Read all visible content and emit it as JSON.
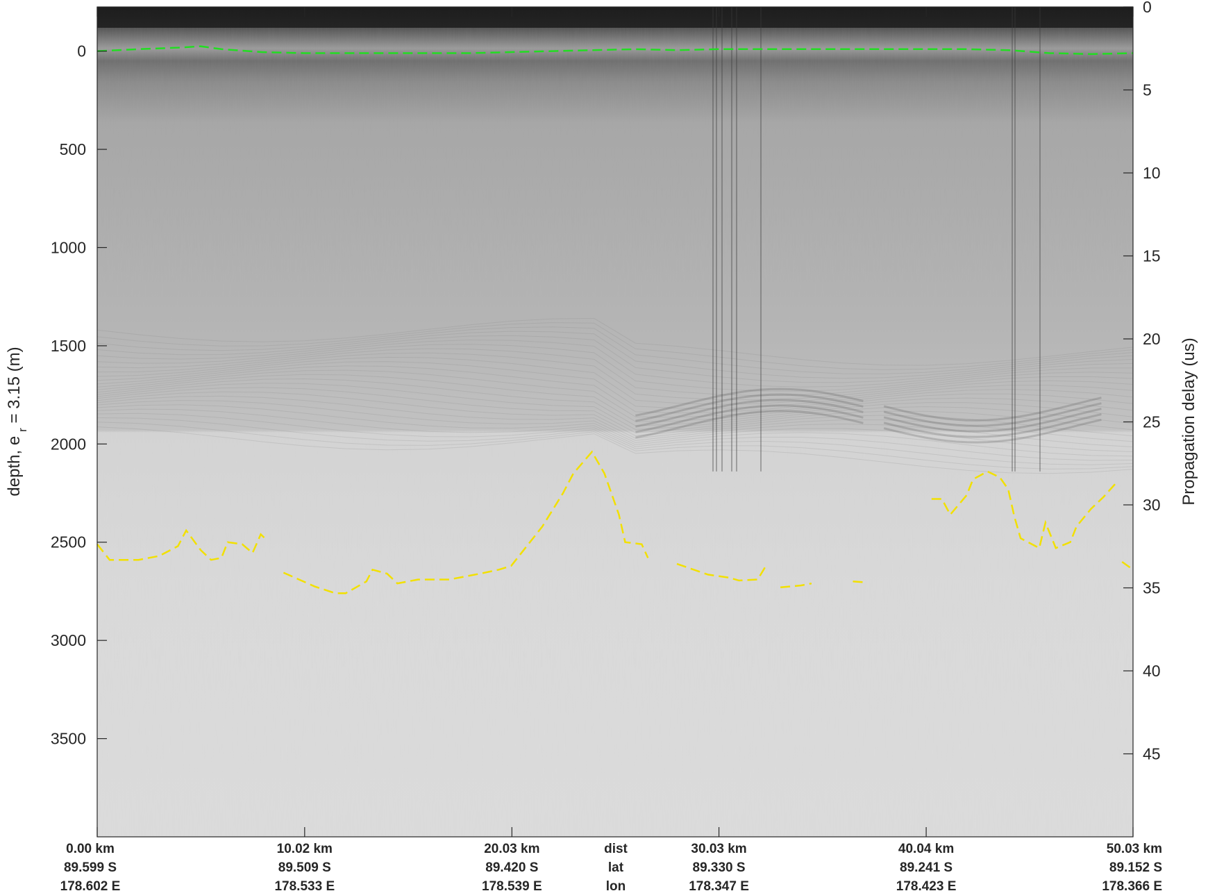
{
  "chart_data": {
    "type": "radargram",
    "ylabel": "depth, e",
    "ylabel_sub": "r",
    "ylabel_tail": " = 3.15 (m)",
    "y2label": "Propagation delay (us)",
    "y_ticks": [
      0,
      500,
      1000,
      1500,
      2000,
      2500,
      3000,
      3500
    ],
    "y_ticks_label": [
      "0",
      "500",
      "1000",
      "1500",
      "2000",
      "2500",
      "3000",
      "3500"
    ],
    "ylim": [
      -225,
      4000
    ],
    "y2_ticks": [
      0,
      5,
      10,
      15,
      20,
      25,
      30,
      35,
      40,
      45
    ],
    "y2_ticks_label": [
      "0",
      "5",
      "10",
      "15",
      "20",
      "25",
      "30",
      "35",
      "40",
      "45"
    ],
    "y2lim": [
      0,
      50
    ],
    "x_km_range": [
      0,
      50.03
    ],
    "x_ticks": [
      {
        "km": 0.0,
        "dist": "0.00 km",
        "lat": "89.599 S",
        "lon": "178.602 E"
      },
      {
        "km": 10.02,
        "dist": "10.02 km",
        "lat": "89.509 S",
        "lon": "178.533 E"
      },
      {
        "km": 20.03,
        "dist": "20.03 km",
        "lat": "89.420 S",
        "lon": "178.539 E"
      },
      {
        "km": 30.03,
        "dist": "30.03 km",
        "lat": "89.330 S",
        "lon": "178.347 E"
      },
      {
        "km": 40.04,
        "dist": "40.04 km",
        "lat": "89.241 S",
        "lon": "178.423 E"
      },
      {
        "km": 50.03,
        "dist": "50.03 km",
        "lat": "89.152 S",
        "lon": "178.366 E"
      }
    ],
    "row_labels": {
      "dist": "dist",
      "lat": "lat",
      "lon": "lon"
    },
    "series": [
      {
        "role": "surface",
        "color": "#22dd22",
        "points": [
          [
            0,
            0
          ],
          [
            2,
            -10
          ],
          [
            4,
            -18
          ],
          [
            5,
            -25
          ],
          [
            6,
            -10
          ],
          [
            8,
            5
          ],
          [
            10,
            10
          ],
          [
            14,
            10
          ],
          [
            18,
            10
          ],
          [
            22,
            0
          ],
          [
            26,
            -10
          ],
          [
            28,
            -5
          ],
          [
            30,
            -10
          ],
          [
            34,
            -10
          ],
          [
            38,
            -10
          ],
          [
            42,
            -10
          ],
          [
            44,
            -5
          ],
          [
            46,
            10
          ],
          [
            48,
            15
          ],
          [
            50.03,
            10
          ]
        ]
      },
      {
        "role": "bed",
        "color": "#f2e000",
        "segments": [
          [
            [
              0,
              2510
            ],
            [
              0.6,
              2590
            ],
            [
              2,
              2590
            ],
            [
              3,
              2570
            ],
            [
              3.9,
              2520
            ],
            [
              4.3,
              2440
            ],
            [
              5,
              2540
            ],
            [
              5.5,
              2590
            ],
            [
              6,
              2580
            ],
            [
              6.3,
              2500
            ],
            [
              7,
              2510
            ],
            [
              7.5,
              2555
            ],
            [
              7.9,
              2460
            ],
            [
              8.2,
              2490
            ]
          ],
          [
            [
              9,
              2655
            ],
            [
              10.5,
              2725
            ],
            [
              11.5,
              2760
            ],
            [
              12,
              2760
            ],
            [
              13,
              2700
            ],
            [
              13.3,
              2640
            ],
            [
              14,
              2660
            ],
            [
              14.5,
              2710
            ],
            [
              15.5,
              2690
            ],
            [
              17,
              2690
            ],
            [
              18.5,
              2660
            ],
            [
              19.4,
              2640
            ],
            [
              20,
              2620
            ],
            [
              21.5,
              2420
            ],
            [
              22.5,
              2250
            ],
            [
              23,
              2150
            ],
            [
              23.9,
              2040
            ],
            [
              24.5,
              2150
            ],
            [
              25.2,
              2360
            ],
            [
              25.5,
              2500
            ],
            [
              26.3,
              2510
            ],
            [
              26.6,
              2580
            ]
          ],
          [
            [
              28,
              2610
            ],
            [
              29.5,
              2665
            ],
            [
              30.5,
              2680
            ],
            [
              31,
              2695
            ],
            [
              31.9,
              2690
            ],
            [
              32.3,
              2620
            ]
          ],
          [
            [
              33,
              2730
            ],
            [
              34,
              2720
            ],
            [
              34.5,
              2710
            ]
          ],
          [
            [
              36.5,
              2700
            ],
            [
              37.2,
              2705
            ]
          ],
          [
            [
              40.3,
              2280
            ],
            [
              40.8,
              2280
            ],
            [
              41.2,
              2360
            ],
            [
              42,
              2260
            ],
            [
              42.3,
              2180
            ],
            [
              43,
              2140
            ],
            [
              43.6,
              2170
            ],
            [
              44,
              2230
            ],
            [
              44.3,
              2370
            ],
            [
              44.6,
              2480
            ],
            [
              45.5,
              2530
            ],
            [
              45.8,
              2400
            ],
            [
              46.3,
              2530
            ],
            [
              47,
              2500
            ],
            [
              47.3,
              2420
            ],
            [
              48,
              2330
            ],
            [
              48.6,
              2270
            ],
            [
              49.2,
              2200
            ]
          ],
          [
            [
              49.5,
              2600
            ],
            [
              50.03,
              2640
            ]
          ]
        ]
      }
    ]
  }
}
